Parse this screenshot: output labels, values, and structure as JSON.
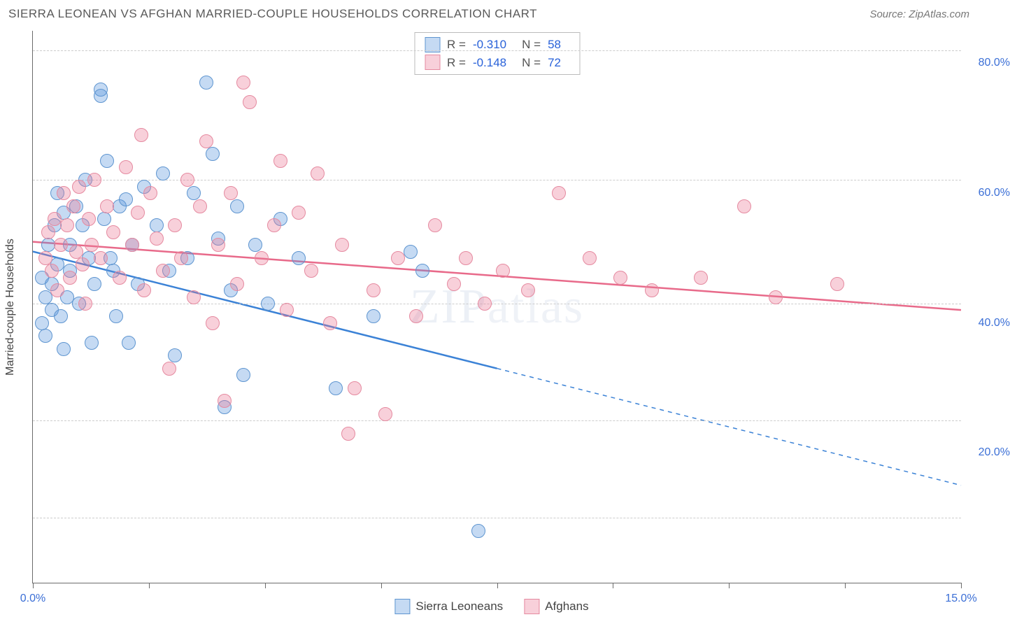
{
  "title": "SIERRA LEONEAN VS AFGHAN MARRIED-COUPLE HOUSEHOLDS CORRELATION CHART",
  "source": "Source: ZipAtlas.com",
  "watermark": "ZIPatlas",
  "chart": {
    "type": "scatter",
    "background_color": "#ffffff",
    "grid_color": "#cccccc",
    "axis_color": "#6b6b6b",
    "label_color": "#3b6fd6",
    "ylabel": "Married-couple Households",
    "label_fontsize": 16,
    "title_fontsize": 17,
    "xlim": [
      0,
      15
    ],
    "ylim": [
      0,
      85
    ],
    "x_ticks": [
      0,
      1.875,
      3.75,
      5.625,
      7.5,
      9.375,
      11.25,
      13.125,
      15
    ],
    "x_tick_labels": {
      "0": "0.0%",
      "15": "15.0%"
    },
    "y_gridlines": [
      10,
      25,
      43,
      62,
      82
    ],
    "y_tick_labels": {
      "20": "20.0%",
      "40": "40.0%",
      "60": "60.0%",
      "80": "80.0%"
    },
    "marker_radius": 10,
    "marker_fill_opacity": 0.35,
    "line_width_regression": 2.5
  },
  "series": [
    {
      "name": "Sierra Leoneans",
      "color": "#3b82d6",
      "fill": "rgba(90,150,220,0.35)",
      "stroke": "#5e95d0",
      "R": "-0.310",
      "N": "58",
      "regression": {
        "x1": 0,
        "y1": 51,
        "x2_solid": 7.5,
        "y2_solid": 33,
        "x2": 15,
        "y2": 15,
        "dashed_from": 7.5
      },
      "points": [
        [
          0.15,
          47
        ],
        [
          0.15,
          40
        ],
        [
          0.2,
          44
        ],
        [
          0.2,
          38
        ],
        [
          0.25,
          52
        ],
        [
          0.3,
          42
        ],
        [
          0.3,
          46
        ],
        [
          0.35,
          55
        ],
        [
          0.4,
          60
        ],
        [
          0.4,
          49
        ],
        [
          0.45,
          41
        ],
        [
          0.5,
          57
        ],
        [
          0.5,
          36
        ],
        [
          0.55,
          44
        ],
        [
          0.6,
          52
        ],
        [
          0.6,
          48
        ],
        [
          0.7,
          58
        ],
        [
          0.75,
          43
        ],
        [
          0.8,
          55
        ],
        [
          0.85,
          62
        ],
        [
          0.9,
          50
        ],
        [
          0.95,
          37
        ],
        [
          1.0,
          46
        ],
        [
          1.1,
          76
        ],
        [
          1.1,
          75
        ],
        [
          1.15,
          56
        ],
        [
          1.2,
          65
        ],
        [
          1.25,
          50
        ],
        [
          1.3,
          48
        ],
        [
          1.35,
          41
        ],
        [
          1.4,
          58
        ],
        [
          1.5,
          59
        ],
        [
          1.55,
          37
        ],
        [
          1.6,
          52
        ],
        [
          1.7,
          46
        ],
        [
          1.8,
          61
        ],
        [
          2.0,
          55
        ],
        [
          2.1,
          63
        ],
        [
          2.2,
          48
        ],
        [
          2.3,
          35
        ],
        [
          2.5,
          50
        ],
        [
          2.6,
          60
        ],
        [
          2.8,
          77
        ],
        [
          2.9,
          66
        ],
        [
          3.0,
          53
        ],
        [
          3.1,
          27
        ],
        [
          3.2,
          45
        ],
        [
          3.3,
          58
        ],
        [
          3.4,
          32
        ],
        [
          3.6,
          52
        ],
        [
          3.8,
          43
        ],
        [
          4.0,
          56
        ],
        [
          4.3,
          50
        ],
        [
          4.9,
          30
        ],
        [
          5.5,
          41
        ],
        [
          6.1,
          51
        ],
        [
          6.3,
          48
        ],
        [
          7.2,
          8
        ]
      ]
    },
    {
      "name": "Afghans",
      "color": "#e86a8a",
      "fill": "rgba(235,120,150,0.35)",
      "stroke": "#e58aa0",
      "R": "-0.148",
      "N": "72",
      "regression": {
        "x1": 0,
        "y1": 52.5,
        "x2_solid": 15,
        "y2_solid": 42,
        "x2": 15,
        "y2": 42,
        "dashed_from": 15
      },
      "points": [
        [
          0.2,
          50
        ],
        [
          0.25,
          54
        ],
        [
          0.3,
          48
        ],
        [
          0.35,
          56
        ],
        [
          0.4,
          45
        ],
        [
          0.45,
          52
        ],
        [
          0.5,
          60
        ],
        [
          0.55,
          55
        ],
        [
          0.6,
          47
        ],
        [
          0.65,
          58
        ],
        [
          0.7,
          51
        ],
        [
          0.75,
          61
        ],
        [
          0.8,
          49
        ],
        [
          0.85,
          43
        ],
        [
          0.9,
          56
        ],
        [
          0.95,
          52
        ],
        [
          1.0,
          62
        ],
        [
          1.1,
          50
        ],
        [
          1.2,
          58
        ],
        [
          1.3,
          54
        ],
        [
          1.4,
          47
        ],
        [
          1.5,
          64
        ],
        [
          1.6,
          52
        ],
        [
          1.7,
          57
        ],
        [
          1.75,
          69
        ],
        [
          1.8,
          45
        ],
        [
          1.9,
          60
        ],
        [
          2.0,
          53
        ],
        [
          2.1,
          48
        ],
        [
          2.2,
          33
        ],
        [
          2.3,
          55
        ],
        [
          2.4,
          50
        ],
        [
          2.5,
          62
        ],
        [
          2.6,
          44
        ],
        [
          2.7,
          58
        ],
        [
          2.8,
          68
        ],
        [
          2.9,
          40
        ],
        [
          3.0,
          52
        ],
        [
          3.1,
          28
        ],
        [
          3.2,
          60
        ],
        [
          3.3,
          46
        ],
        [
          3.4,
          77
        ],
        [
          3.5,
          74
        ],
        [
          3.7,
          50
        ],
        [
          3.9,
          55
        ],
        [
          4.0,
          65
        ],
        [
          4.1,
          42
        ],
        [
          4.3,
          57
        ],
        [
          4.5,
          48
        ],
        [
          4.6,
          63
        ],
        [
          4.8,
          40
        ],
        [
          5.0,
          52
        ],
        [
          5.1,
          23
        ],
        [
          5.2,
          30
        ],
        [
          5.5,
          45
        ],
        [
          5.7,
          26
        ],
        [
          5.9,
          50
        ],
        [
          6.2,
          41
        ],
        [
          6.5,
          55
        ],
        [
          6.8,
          46
        ],
        [
          7.0,
          50
        ],
        [
          7.3,
          43
        ],
        [
          7.6,
          48
        ],
        [
          8.0,
          45
        ],
        [
          8.5,
          60
        ],
        [
          9.0,
          50
        ],
        [
          9.5,
          47
        ],
        [
          10.0,
          45
        ],
        [
          10.8,
          47
        ],
        [
          11.5,
          58
        ],
        [
          12.0,
          44
        ],
        [
          13.0,
          46
        ]
      ]
    }
  ],
  "legend_labels": {
    "R_prefix": "R =",
    "N_prefix": "N ="
  }
}
